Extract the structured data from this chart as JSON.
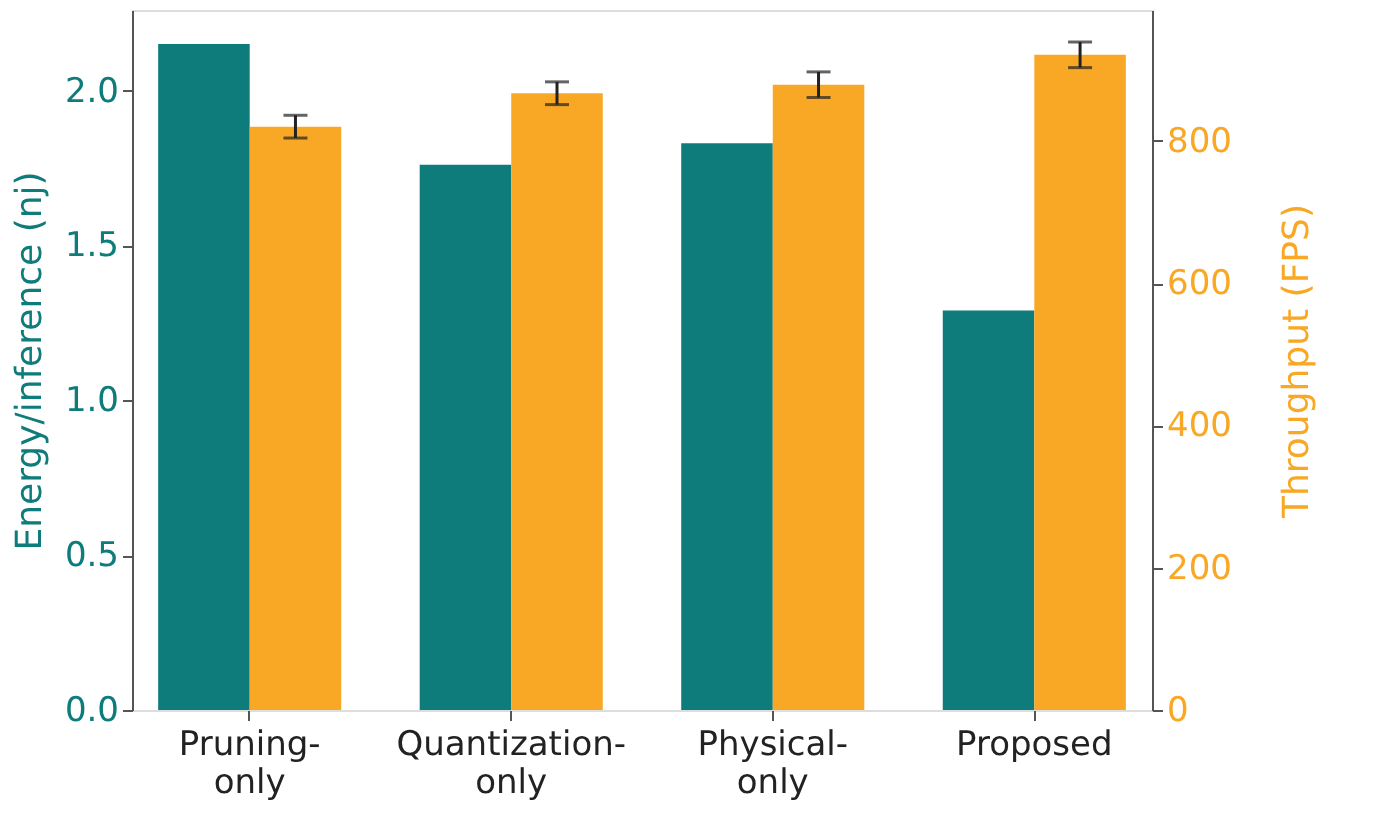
{
  "chart_data": {
    "type": "bar",
    "categories": [
      "Pruning-only",
      "Quantization-only",
      "Physical-only",
      "Proposed"
    ],
    "ylabel": "Energy/inference (nj)",
    "y2label": "Throughput (FPS)",
    "ylim": [
      0,
      2.26
    ],
    "yticks": [
      {
        "value": 0,
        "label": "0.0"
      },
      0.5,
      {
        "value": 1,
        "label": "1.0"
      },
      1.5,
      {
        "value": 2,
        "label": "2.0"
      }
    ],
    "y2lim": [
      0,
      984
    ],
    "y2ticks": [
      0,
      200,
      400,
      600,
      800
    ],
    "series": [
      {
        "color": "#0e7c7b",
        "values": [
          2.15,
          1.76,
          1.83,
          1.29
        ]
      },
      {
        "color": "#f9a825",
        "axis": "y2",
        "values": [
          820,
          867,
          879,
          921
        ],
        "errors": [
          16,
          16,
          18,
          18
        ]
      }
    ]
  }
}
